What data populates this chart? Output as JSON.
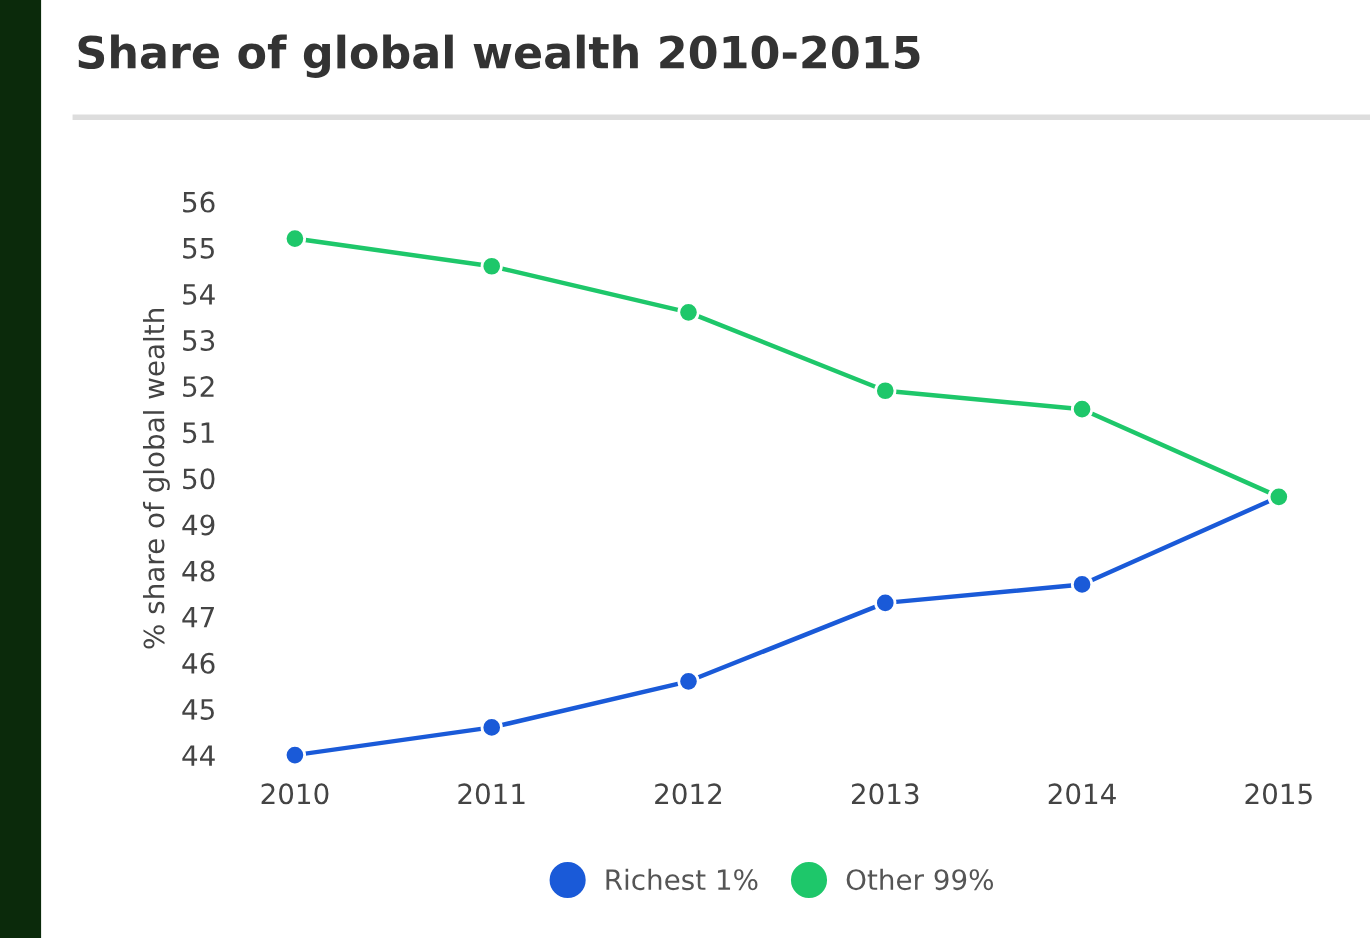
{
  "chart_data": {
    "type": "line",
    "title": "Share of global wealth 2010-2015",
    "ylabel": "% share of global wealth",
    "categories": [
      "2010",
      "2011",
      "2012",
      "2013",
      "2014",
      "2015"
    ],
    "series": [
      {
        "name": "Richest 1%",
        "color": "#1a5ad8",
        "values": [
          44.0,
          44.6,
          45.6,
          47.3,
          47.7,
          49.6
        ]
      },
      {
        "name": "Other 99%",
        "color": "#1ec76a",
        "values": [
          55.2,
          54.6,
          53.6,
          51.9,
          51.5,
          49.6
        ]
      }
    ],
    "ylim": [
      44,
      56
    ],
    "yticks": [
      44,
      45,
      46,
      47,
      48,
      49,
      50,
      51,
      52,
      53,
      54,
      55,
      56
    ],
    "grid": false,
    "legend": "bottom",
    "marker": "circle",
    "line_style": "solid"
  }
}
